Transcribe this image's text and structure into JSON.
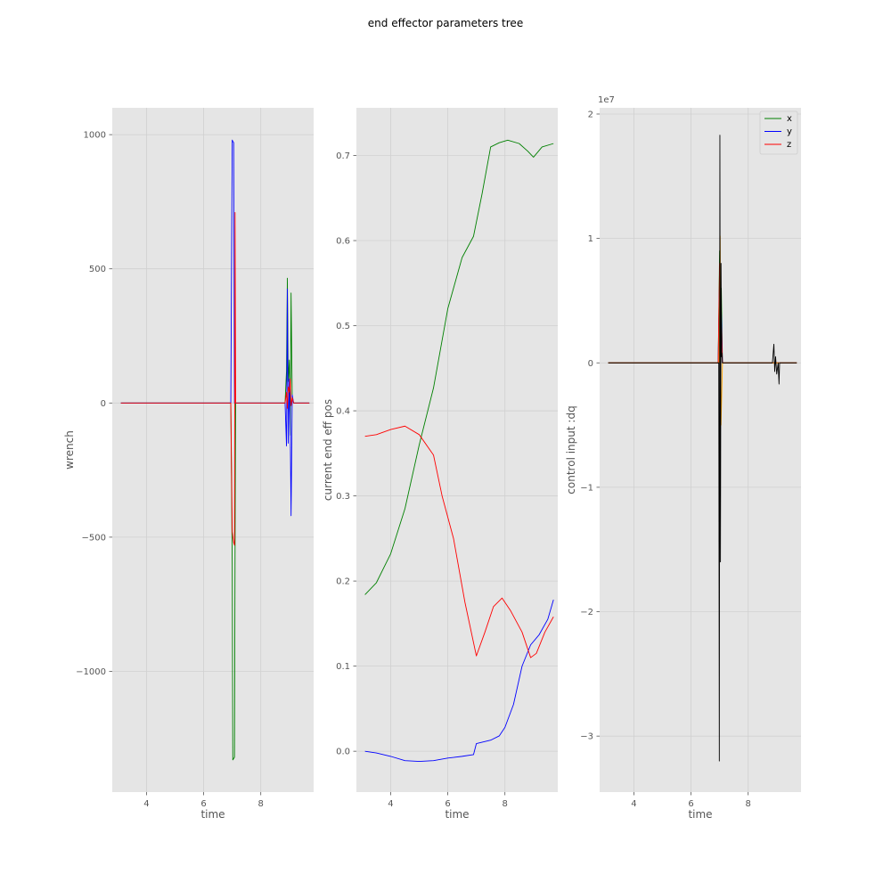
{
  "figure": {
    "title": "end effector parameters tree",
    "background": "#E5E5E5",
    "grid_color": "#D0D0D0"
  },
  "chart_data": [
    {
      "type": "line",
      "xlabel": "time",
      "ylabel": "wrench",
      "xlim": [
        2.8,
        9.85
      ],
      "ylim": [
        -1450,
        1100
      ],
      "xticks": [
        4,
        6,
        8
      ],
      "xtick_labels": [
        "4",
        "6",
        "8"
      ],
      "yticks": [
        -1000,
        -500,
        0,
        500,
        1000
      ],
      "ytick_labels": [
        "−1000",
        "−500",
        "0",
        "500",
        "1000"
      ],
      "grid": true,
      "series": [
        {
          "color": "#008000",
          "x": [
            3.1,
            6.95,
            7.0,
            7.02,
            7.05,
            7.08,
            7.1,
            7.12,
            7.15,
            7.2,
            8.85,
            8.9,
            8.93,
            8.96,
            9.0,
            9.03,
            9.06,
            9.1,
            9.15,
            9.7
          ],
          "y": [
            0,
            0,
            -600,
            -1330,
            -1325,
            -1320,
            -520,
            0,
            0,
            0,
            0,
            120,
            465,
            80,
            160,
            -120,
            410,
            20,
            0,
            0
          ]
        },
        {
          "color": "#0000FF",
          "x": [
            3.1,
            6.95,
            7.0,
            7.02,
            7.05,
            7.08,
            7.12,
            7.2,
            8.85,
            8.9,
            8.93,
            8.96,
            9.0,
            9.03,
            9.06,
            9.1,
            9.15,
            9.7
          ],
          "y": [
            0,
            0,
            980,
            975,
            970,
            0,
            0,
            0,
            0,
            -160,
            425,
            -150,
            90,
            -80,
            -420,
            30,
            0,
            0
          ]
        },
        {
          "color": "#FF0000",
          "x": [
            3.1,
            6.95,
            7.0,
            7.05,
            7.08,
            7.1,
            7.12,
            7.2,
            8.85,
            8.9,
            8.93,
            8.96,
            9.0,
            9.03,
            9.06,
            9.1,
            9.15,
            9.7
          ],
          "y": [
            0,
            0,
            -480,
            -520,
            -530,
            710,
            0,
            0,
            0,
            40,
            -20,
            60,
            40,
            90,
            -10,
            20,
            0,
            0
          ]
        }
      ]
    },
    {
      "type": "line",
      "xlabel": "time",
      "ylabel": "current end eff pos",
      "xlim": [
        2.8,
        9.85
      ],
      "ylim": [
        -0.048,
        0.756
      ],
      "xticks": [
        4,
        6,
        8
      ],
      "xtick_labels": [
        "4",
        "6",
        "8"
      ],
      "yticks": [
        0.0,
        0.1,
        0.2,
        0.3,
        0.4,
        0.5,
        0.6,
        0.7
      ],
      "ytick_labels": [
        "0.0",
        "0.1",
        "0.2",
        "0.3",
        "0.4",
        "0.5",
        "0.6",
        "0.7"
      ],
      "grid": true,
      "series": [
        {
          "color": "#008000",
          "x": [
            3.1,
            3.5,
            4.0,
            4.5,
            5.0,
            5.5,
            6.0,
            6.5,
            6.9,
            7.2,
            7.5,
            7.8,
            8.1,
            8.5,
            8.8,
            9.0,
            9.3,
            9.7
          ],
          "y": [
            0.184,
            0.198,
            0.232,
            0.285,
            0.36,
            0.427,
            0.52,
            0.58,
            0.605,
            0.655,
            0.71,
            0.715,
            0.718,
            0.714,
            0.705,
            0.698,
            0.71,
            0.714
          ]
        },
        {
          "color": "#0000FF",
          "x": [
            3.1,
            3.5,
            4.0,
            4.5,
            5.0,
            5.5,
            6.0,
            6.5,
            6.9,
            7.0,
            7.5,
            7.8,
            8.0,
            8.3,
            8.6,
            8.9,
            9.2,
            9.5,
            9.7
          ],
          "y": [
            0.0,
            -0.002,
            -0.006,
            -0.011,
            -0.012,
            -0.011,
            -0.008,
            -0.006,
            -0.004,
            0.009,
            0.013,
            0.018,
            0.028,
            0.055,
            0.1,
            0.125,
            0.137,
            0.155,
            0.178
          ]
        },
        {
          "color": "#FF0000",
          "x": [
            3.1,
            3.5,
            4.0,
            4.5,
            5.0,
            5.5,
            5.8,
            6.2,
            6.6,
            7.0,
            7.3,
            7.6,
            7.9,
            8.2,
            8.6,
            8.9,
            9.1,
            9.4,
            9.7
          ],
          "y": [
            0.37,
            0.372,
            0.378,
            0.382,
            0.372,
            0.348,
            0.3,
            0.25,
            0.175,
            0.112,
            0.14,
            0.17,
            0.18,
            0.165,
            0.14,
            0.11,
            0.115,
            0.14,
            0.158
          ]
        }
      ]
    },
    {
      "type": "line",
      "xlabel": "time",
      "ylabel": "control input :dq",
      "exponent_label": "1e7",
      "xlim": [
        2.8,
        9.85
      ],
      "ylim": [
        -3.45,
        2.05
      ],
      "xticks": [
        4,
        6,
        8
      ],
      "xtick_labels": [
        "4",
        "6",
        "8"
      ],
      "yticks": [
        -3,
        -2,
        -1,
        0,
        1,
        2
      ],
      "ytick_labels": [
        "−3",
        "−2",
        "−1",
        "0",
        "1",
        "2"
      ],
      "grid": true,
      "legend": {
        "position": "top-right",
        "entries": [
          {
            "label": "x",
            "color": "#008000"
          },
          {
            "label": "y",
            "color": "#0000FF"
          },
          {
            "label": "z",
            "color": "#FF0000"
          }
        ]
      },
      "series": [
        {
          "color": "#008000",
          "x": [
            3.1,
            6.95,
            7.0,
            7.03,
            7.06,
            7.1,
            9.7
          ],
          "y": [
            0,
            0,
            0.9,
            -0.4,
            0.6,
            0,
            0
          ]
        },
        {
          "color": "#0000FF",
          "x": [
            3.1,
            6.95,
            7.0,
            7.03,
            7.06,
            7.1,
            9.7
          ],
          "y": [
            0,
            0,
            0.7,
            -0.3,
            0.4,
            0,
            0
          ]
        },
        {
          "color": "#FF0000",
          "x": [
            3.1,
            6.95,
            7.0,
            7.03,
            7.06,
            7.1,
            9.7
          ],
          "y": [
            0,
            0,
            0.8,
            -0.2,
            0.3,
            0,
            0
          ]
        },
        {
          "color": "#FFA500",
          "x": [
            3.1,
            6.98,
            7.02,
            7.05,
            7.1,
            9.7
          ],
          "y": [
            0,
            0,
            1.02,
            -0.5,
            0,
            0
          ]
        },
        {
          "color": "#000000",
          "x": [
            3.1,
            6.97,
            6.99,
            7.01,
            7.03,
            7.05,
            7.07,
            7.08,
            7.1,
            8.85,
            8.9,
            8.93,
            8.96,
            9.0,
            9.05,
            9.08,
            9.1,
            9.7
          ],
          "y": [
            0,
            0,
            -3.2,
            1.83,
            -1.6,
            0.8,
            0.05,
            0.08,
            0,
            0,
            0.15,
            -0.07,
            0.05,
            -0.09,
            0.0,
            -0.17,
            0,
            0
          ]
        }
      ]
    }
  ]
}
